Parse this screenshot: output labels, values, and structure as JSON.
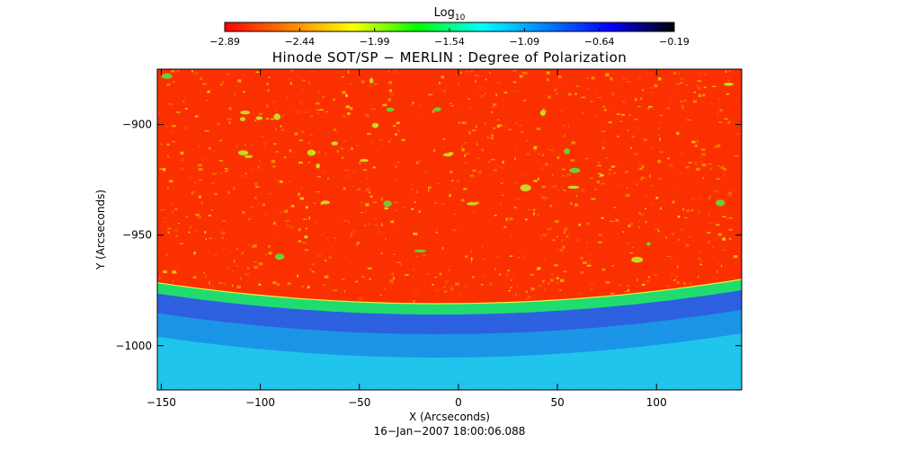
{
  "chart_data": {
    "type": "heatmap",
    "title": "Hinode SOT/SP − MERLIN : Degree of Polarization",
    "xlabel": "X (Arcseconds)",
    "ylabel": "Y (Arcseconds)",
    "timestamp": "16−Jan−2007 18:00:06.088",
    "xlim": [
      -152,
      143
    ],
    "ylim": [
      -1020,
      -875
    ],
    "x_ticks": [
      -150,
      -100,
      -50,
      0,
      50,
      100
    ],
    "y_ticks": [
      -900,
      -950,
      -1000
    ],
    "x_tick_labels": [
      "−150",
      "−100",
      "−50",
      "0",
      "50",
      "100"
    ],
    "y_tick_labels": [
      "−900",
      "−950",
      "−1000"
    ],
    "limb": {
      "y_at_edges": -970,
      "y_at_center": -981,
      "center_x": -10
    },
    "colorbar": {
      "title_base": "Log",
      "title_sub": "10",
      "range": [
        -2.89,
        -0.19
      ],
      "ticks": [
        -2.89,
        -2.44,
        -1.99,
        -1.54,
        -1.09,
        -0.64,
        -0.19
      ],
      "tick_labels": [
        "−2.89",
        "−2.44",
        "−1.99",
        "−1.54",
        "−1.09",
        "−0.64",
        "−0.19"
      ],
      "colors": [
        "#ff0000",
        "#ff8000",
        "#ffff00",
        "#00ff00",
        "#00ffff",
        "#0080ff",
        "#0000ff",
        "#000000"
      ]
    }
  }
}
